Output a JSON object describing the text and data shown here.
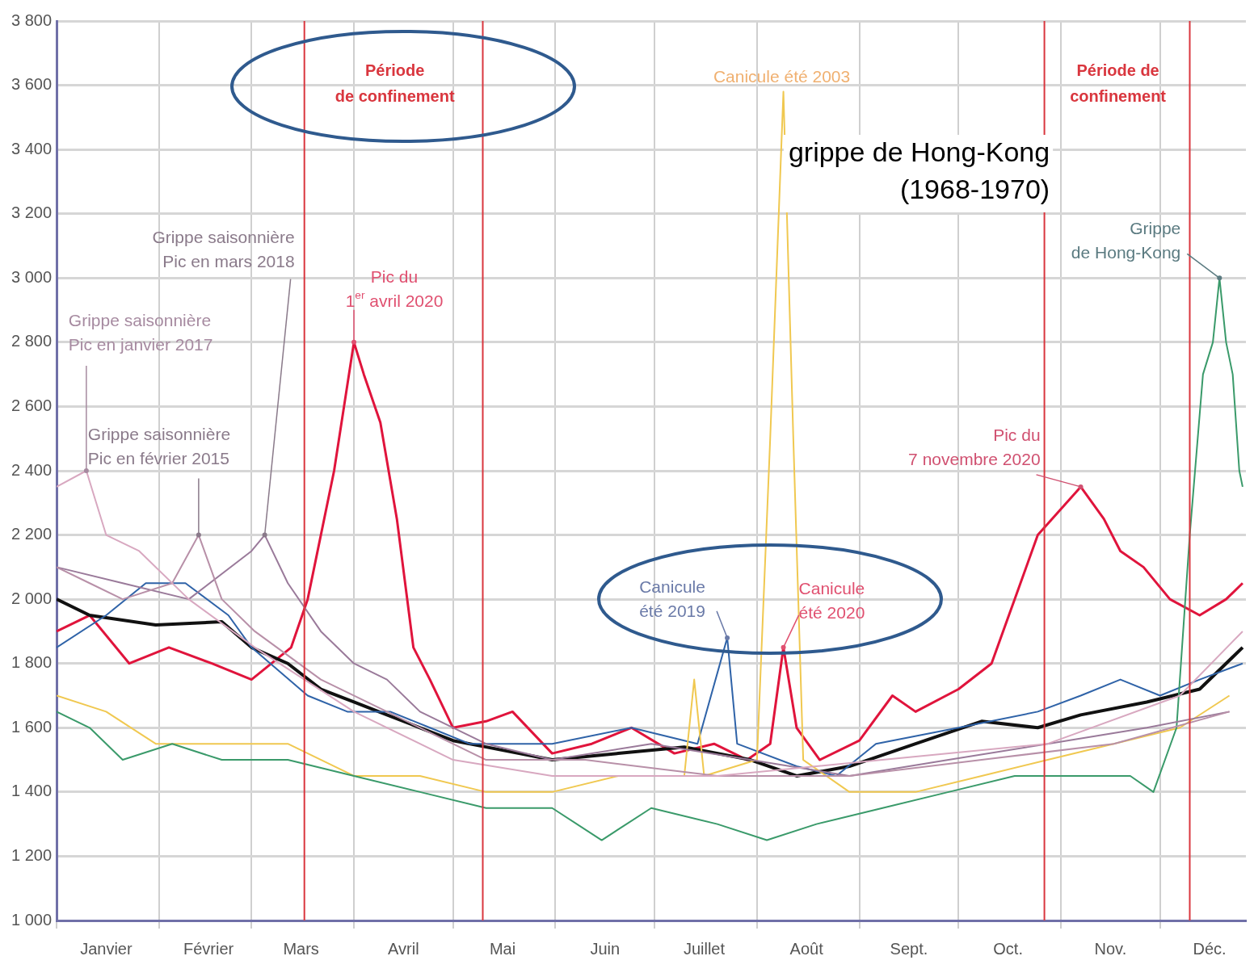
{
  "chart_data": {
    "type": "line",
    "xlim": [
      "--01-01",
      "--12-27"
    ],
    "xticks": [
      {
        "value": "--01-01",
        "label": null
      },
      {
        "value": "--01-16",
        "label": "Janvier"
      },
      {
        "value": "--02-01",
        "label": null
      },
      {
        "value": "--02-16",
        "label": "Février"
      },
      {
        "value": "--03-01",
        "label": null
      },
      {
        "value": "--03-16",
        "label": "Mars"
      },
      {
        "value": "--04-01",
        "label": null
      },
      {
        "value": "--04-16",
        "label": "Avril"
      },
      {
        "value": "--05-01",
        "label": null
      },
      {
        "value": "--05-16",
        "label": "Mai"
      },
      {
        "value": "--06-01",
        "label": null
      },
      {
        "value": "--06-16",
        "label": "Juin"
      },
      {
        "value": "--07-01",
        "label": null
      },
      {
        "value": "--07-16",
        "label": "Juillet"
      },
      {
        "value": "--08-01",
        "label": null
      },
      {
        "value": "--08-16",
        "label": "Août"
      },
      {
        "value": "--09-01",
        "label": null
      },
      {
        "value": "--09-16",
        "label": "Sept."
      },
      {
        "value": "--10-01",
        "label": null
      },
      {
        "value": "--10-16",
        "label": "Oct."
      },
      {
        "value": "--11-01",
        "label": null
      },
      {
        "value": "--11-16",
        "label": "Nov."
      },
      {
        "value": "--12-01",
        "label": null
      },
      {
        "value": "--12-16",
        "label": "Déc."
      }
    ],
    "ylim": [
      1000,
      3800
    ],
    "yticks": [
      {
        "value": 1000,
        "label": "1 000"
      },
      {
        "value": 1200,
        "label": "1 200"
      },
      {
        "value": 1400,
        "label": "1 400"
      },
      {
        "value": 1600,
        "label": "1 600"
      },
      {
        "value": 1800,
        "label": "1 800"
      },
      {
        "value": 2000,
        "label": "2 000"
      },
      {
        "value": 2200,
        "label": "2 200"
      },
      {
        "value": 2400,
        "label": "2 400"
      },
      {
        "value": 2600,
        "label": "2 600"
      },
      {
        "value": 2800,
        "label": "2 800"
      },
      {
        "value": 3000,
        "label": "3 000"
      },
      {
        "value": 3200,
        "label": "3 200"
      },
      {
        "value": 3400,
        "label": "3 400"
      },
      {
        "value": 3600,
        "label": "3 600"
      },
      {
        "value": 3800,
        "label": "3 800"
      }
    ],
    "grid": true,
    "legend": false,
    "marker": "none",
    "series": [
      {
        "color": "#d8a8c0",
        "x": [
          "--01-01",
          "--01-10",
          "--01-16",
          "--01-26",
          "--02-10",
          "--03-02",
          "--04-01",
          "--05-01",
          "--05-31",
          "--07-20",
          "--09-08",
          "--10-28",
          "--12-07",
          "--12-26"
        ],
        "values": [
          2350,
          2400,
          2200,
          2150,
          2000,
          1850,
          1650,
          1500,
          1450,
          1450,
          1500,
          1550,
          1700,
          1900
        ]
      },
      {
        "color": "#b890a8",
        "x": [
          "--01-01",
          "--01-11",
          "--01-21",
          "--02-05",
          "--02-13",
          "--02-20",
          "--03-02",
          "--03-22",
          "--04-11",
          "--05-11",
          "--06-10",
          "--07-20",
          "--08-29",
          "--10-08",
          "--11-17",
          "--12-22"
        ],
        "values": [
          2100,
          2050,
          2000,
          2050,
          2200,
          2000,
          1900,
          1750,
          1650,
          1500,
          1500,
          1450,
          1450,
          1500,
          1550,
          1650
        ]
      },
      {
        "color": "#9a7a9a",
        "x": [
          "--01-01",
          "--01-21",
          "--02-10",
          "--03-01",
          "--03-05",
          "--03-12",
          "--03-22",
          "--04-01",
          "--04-11",
          "--04-21",
          "--05-11",
          "--05-31",
          "--06-30",
          "--07-30",
          "--08-29",
          "--09-28",
          "--10-28",
          "--11-27",
          "--12-22"
        ],
        "values": [
          2100,
          2050,
          2000,
          2150,
          2200,
          2050,
          1900,
          1800,
          1750,
          1650,
          1550,
          1500,
          1550,
          1500,
          1450,
          1500,
          1550,
          1600,
          1650
        ]
      },
      {
        "color": "#3a9a6a",
        "x": [
          "--01-01",
          "--01-11",
          "--01-21",
          "--02-05",
          "--02-20",
          "--02-27",
          "--03-12",
          "--04-01",
          "--04-21",
          "--05-11",
          "--05-31",
          "--06-15",
          "--06-30",
          "--07-20",
          "--08-04",
          "--08-19",
          "--09-08",
          "--09-28",
          "--10-18",
          "--11-07",
          "--11-22",
          "--11-29",
          "--12-06",
          "--12-10",
          "--12-14",
          "--12-17",
          "--12-19",
          "--12-21",
          "--12-23",
          "--12-25",
          "--12-26"
        ],
        "values": [
          1650,
          1600,
          1500,
          1550,
          1500,
          1500,
          1500,
          1450,
          1400,
          1350,
          1350,
          1250,
          1350,
          1300,
          1250,
          1300,
          1350,
          1400,
          1450,
          1450,
          1450,
          1400,
          1600,
          2200,
          2700,
          2800,
          3000,
          2800,
          2700,
          2400,
          2350
        ]
      },
      {
        "color": "#f0c850",
        "x": [
          "--01-01",
          "--01-16",
          "--01-31",
          "--02-20",
          "--03-12",
          "--04-01",
          "--04-21",
          "--05-11",
          "--05-31",
          "--06-20",
          "--07-10",
          "--07-13",
          "--07-16",
          "--08-01",
          "--08-05",
          "--08-09",
          "--08-12",
          "--08-15",
          "--08-29",
          "--09-18",
          "--10-08",
          "--10-28",
          "--11-17",
          "--12-07",
          "--12-22"
        ],
        "values": [
          1700,
          1650,
          1550,
          1550,
          1550,
          1450,
          1450,
          1400,
          1400,
          1450,
          1450,
          1750,
          1450,
          1500,
          2500,
          3580,
          2500,
          1500,
          1400,
          1400,
          1450,
          1500,
          1550,
          1600,
          1700
        ]
      },
      {
        "color": "#2f63a8",
        "x": [
          "--01-01",
          "--01-16",
          "--01-28",
          "--02-09",
          "--02-22",
          "--03-01",
          "--03-18",
          "--03-30",
          "--04-12",
          "--04-24",
          "--05-06",
          "--05-31",
          "--06-24",
          "--07-14",
          "--07-23",
          "--07-26",
          "--08-13",
          "--08-25",
          "--09-06",
          "--10-01",
          "--10-25",
          "--11-07",
          "--11-19",
          "--12-01",
          "--12-13",
          "--12-26"
        ],
        "values": [
          1850,
          1950,
          2050,
          2050,
          1950,
          1850,
          1700,
          1650,
          1650,
          1600,
          1550,
          1550,
          1600,
          1550,
          1880,
          1550,
          1480,
          1450,
          1550,
          1600,
          1650,
          1700,
          1750,
          1700,
          1750,
          1800
        ]
      },
      {
        "color": "#111111",
        "x": [
          "--01-01",
          "--01-11",
          "--01-31",
          "--02-20",
          "--03-01",
          "--03-12",
          "--03-22",
          "--04-01",
          "--04-11",
          "--04-21",
          "--05-01",
          "--05-11",
          "--05-31",
          "--06-20",
          "--07-10",
          "--07-30",
          "--08-13",
          "--08-29",
          "--09-18",
          "--10-08",
          "--10-25",
          "--11-07",
          "--11-27",
          "--12-13",
          "--12-26"
        ],
        "values": [
          2000,
          1950,
          1920,
          1930,
          1850,
          1800,
          1720,
          1680,
          1640,
          1600,
          1560,
          1540,
          1500,
          1520,
          1540,
          1500,
          1450,
          1480,
          1550,
          1620,
          1600,
          1640,
          1680,
          1720,
          1850
        ]
      },
      {
        "color": "#e0143c",
        "x": [
          "--01-01",
          "--01-11",
          "--01-23",
          "--02-04",
          "--02-17",
          "--03-01",
          "--03-13",
          "--03-18",
          "--03-26",
          "--04-01",
          "--04-04",
          "--04-09",
          "--04-14",
          "--04-19",
          "--04-24",
          "--05-01",
          "--05-11",
          "--05-19",
          "--05-31",
          "--06-12",
          "--06-24",
          "--07-07",
          "--07-19",
          "--07-29",
          "--08-05",
          "--08-09",
          "--08-13",
          "--08-20",
          "--09-01",
          "--09-11",
          "--09-18",
          "--10-01",
          "--10-11",
          "--10-18",
          "--10-25",
          "--11-07",
          "--11-14",
          "--11-19",
          "--11-26",
          "--12-04",
          "--12-13",
          "--12-21",
          "--12-26"
        ],
        "values": [
          1900,
          1950,
          1800,
          1850,
          1800,
          1750,
          1850,
          2000,
          2400,
          2800,
          2700,
          2550,
          2250,
          1850,
          1750,
          1600,
          1620,
          1650,
          1520,
          1550,
          1600,
          1520,
          1550,
          1500,
          1550,
          1850,
          1600,
          1500,
          1560,
          1700,
          1650,
          1720,
          1800,
          2000,
          2200,
          2350,
          2250,
          2150,
          2100,
          2000,
          1950,
          2000,
          2050
        ]
      }
    ],
    "ref_lines": [
      {
        "axis": "x",
        "value": "--03-17",
        "label": "Période\nde confinement",
        "color": "#d9363e"
      },
      {
        "axis": "x",
        "value": "--05-10",
        "color": "#d9363e"
      },
      {
        "axis": "x",
        "value": "--10-27",
        "label": "Période de\nconfinement",
        "color": "#d9363e"
      },
      {
        "axis": "x",
        "value": "--12-10",
        "color": "#d9363e"
      }
    ],
    "annotations": [
      {
        "text": "Grippe saisonnière\nPic en mars 2018",
        "x": "--03-05",
        "y": 2200
      },
      {
        "text": "Grippe saisonnière\nPic en janvier 2017",
        "x": "--01-10",
        "y": 2400
      },
      {
        "text": "Grippe saisonnière\nPic en février 2015",
        "x": "--02-13",
        "y": 2200
      },
      {
        "text": "Pic du\n1$^{er}$ avril 2020",
        "x": "--04-01",
        "y": 2800
      },
      {
        "text": "Canicule été 2003",
        "x": "--08-09",
        "y": 3580
      },
      {
        "text": "Canicule\nété 2019",
        "x": "--07-23",
        "y": 1880
      },
      {
        "text": "Canicule\nété 2020",
        "x": "--08-09",
        "y": 1850
      },
      {
        "text": "Pic du\n7 novembre 2020",
        "x": "--11-07",
        "y": 2350
      },
      {
        "text": "Grippe\nde Hong-Kong",
        "x": "--12-19",
        "y": 3000
      },
      "grippe de Hong-Kong\n(1968-1970)"
    ]
  }
}
